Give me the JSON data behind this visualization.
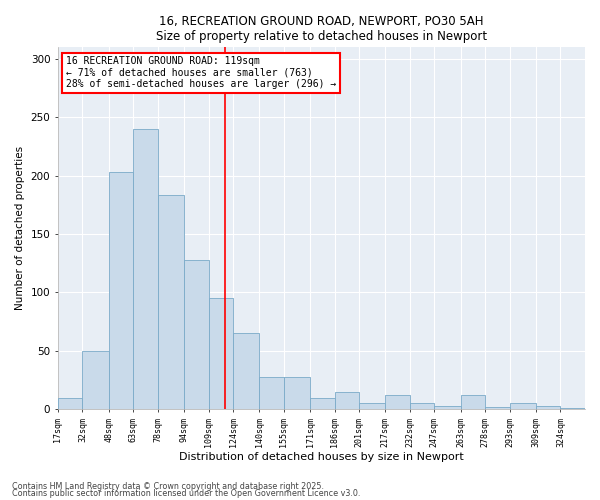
{
  "title1": "16, RECREATION GROUND ROAD, NEWPORT, PO30 5AH",
  "title2": "Size of property relative to detached houses in Newport",
  "xlabel": "Distribution of detached houses by size in Newport",
  "ylabel": "Number of detached properties",
  "bar_color": "#c9daea",
  "bar_edge_color": "#7aaac8",
  "background_color": "#e8eef5",
  "vline_x": 119,
  "vline_color": "red",
  "annotation_text": "16 RECREATION GROUND ROAD: 119sqm\n← 71% of detached houses are smaller (763)\n28% of semi-detached houses are larger (296) →",
  "annotation_box_color": "white",
  "annotation_box_edge_color": "red",
  "footnote1": "Contains HM Land Registry data © Crown copyright and database right 2025.",
  "footnote2": "Contains public sector information licensed under the Open Government Licence v3.0.",
  "bins": [
    17,
    32,
    48,
    63,
    78,
    94,
    109,
    124,
    140,
    155,
    171,
    186,
    201,
    217,
    232,
    247,
    263,
    278,
    293,
    309,
    324
  ],
  "bin_labels": [
    "17sqm",
    "32sqm",
    "48sqm",
    "63sqm",
    "78sqm",
    "94sqm",
    "109sqm",
    "124sqm",
    "140sqm",
    "155sqm",
    "171sqm",
    "186sqm",
    "201sqm",
    "217sqm",
    "232sqm",
    "247sqm",
    "263sqm",
    "278sqm",
    "293sqm",
    "309sqm",
    "324sqm"
  ],
  "values": [
    10,
    50,
    203,
    240,
    183,
    128,
    95,
    65,
    28,
    28,
    10,
    15,
    5,
    12,
    5,
    3,
    12,
    2,
    5,
    3,
    1
  ],
  "ylim": [
    0,
    310
  ],
  "yticks": [
    0,
    50,
    100,
    150,
    200,
    250,
    300
  ],
  "figsize": [
    6.0,
    5.0
  ],
  "dpi": 100
}
